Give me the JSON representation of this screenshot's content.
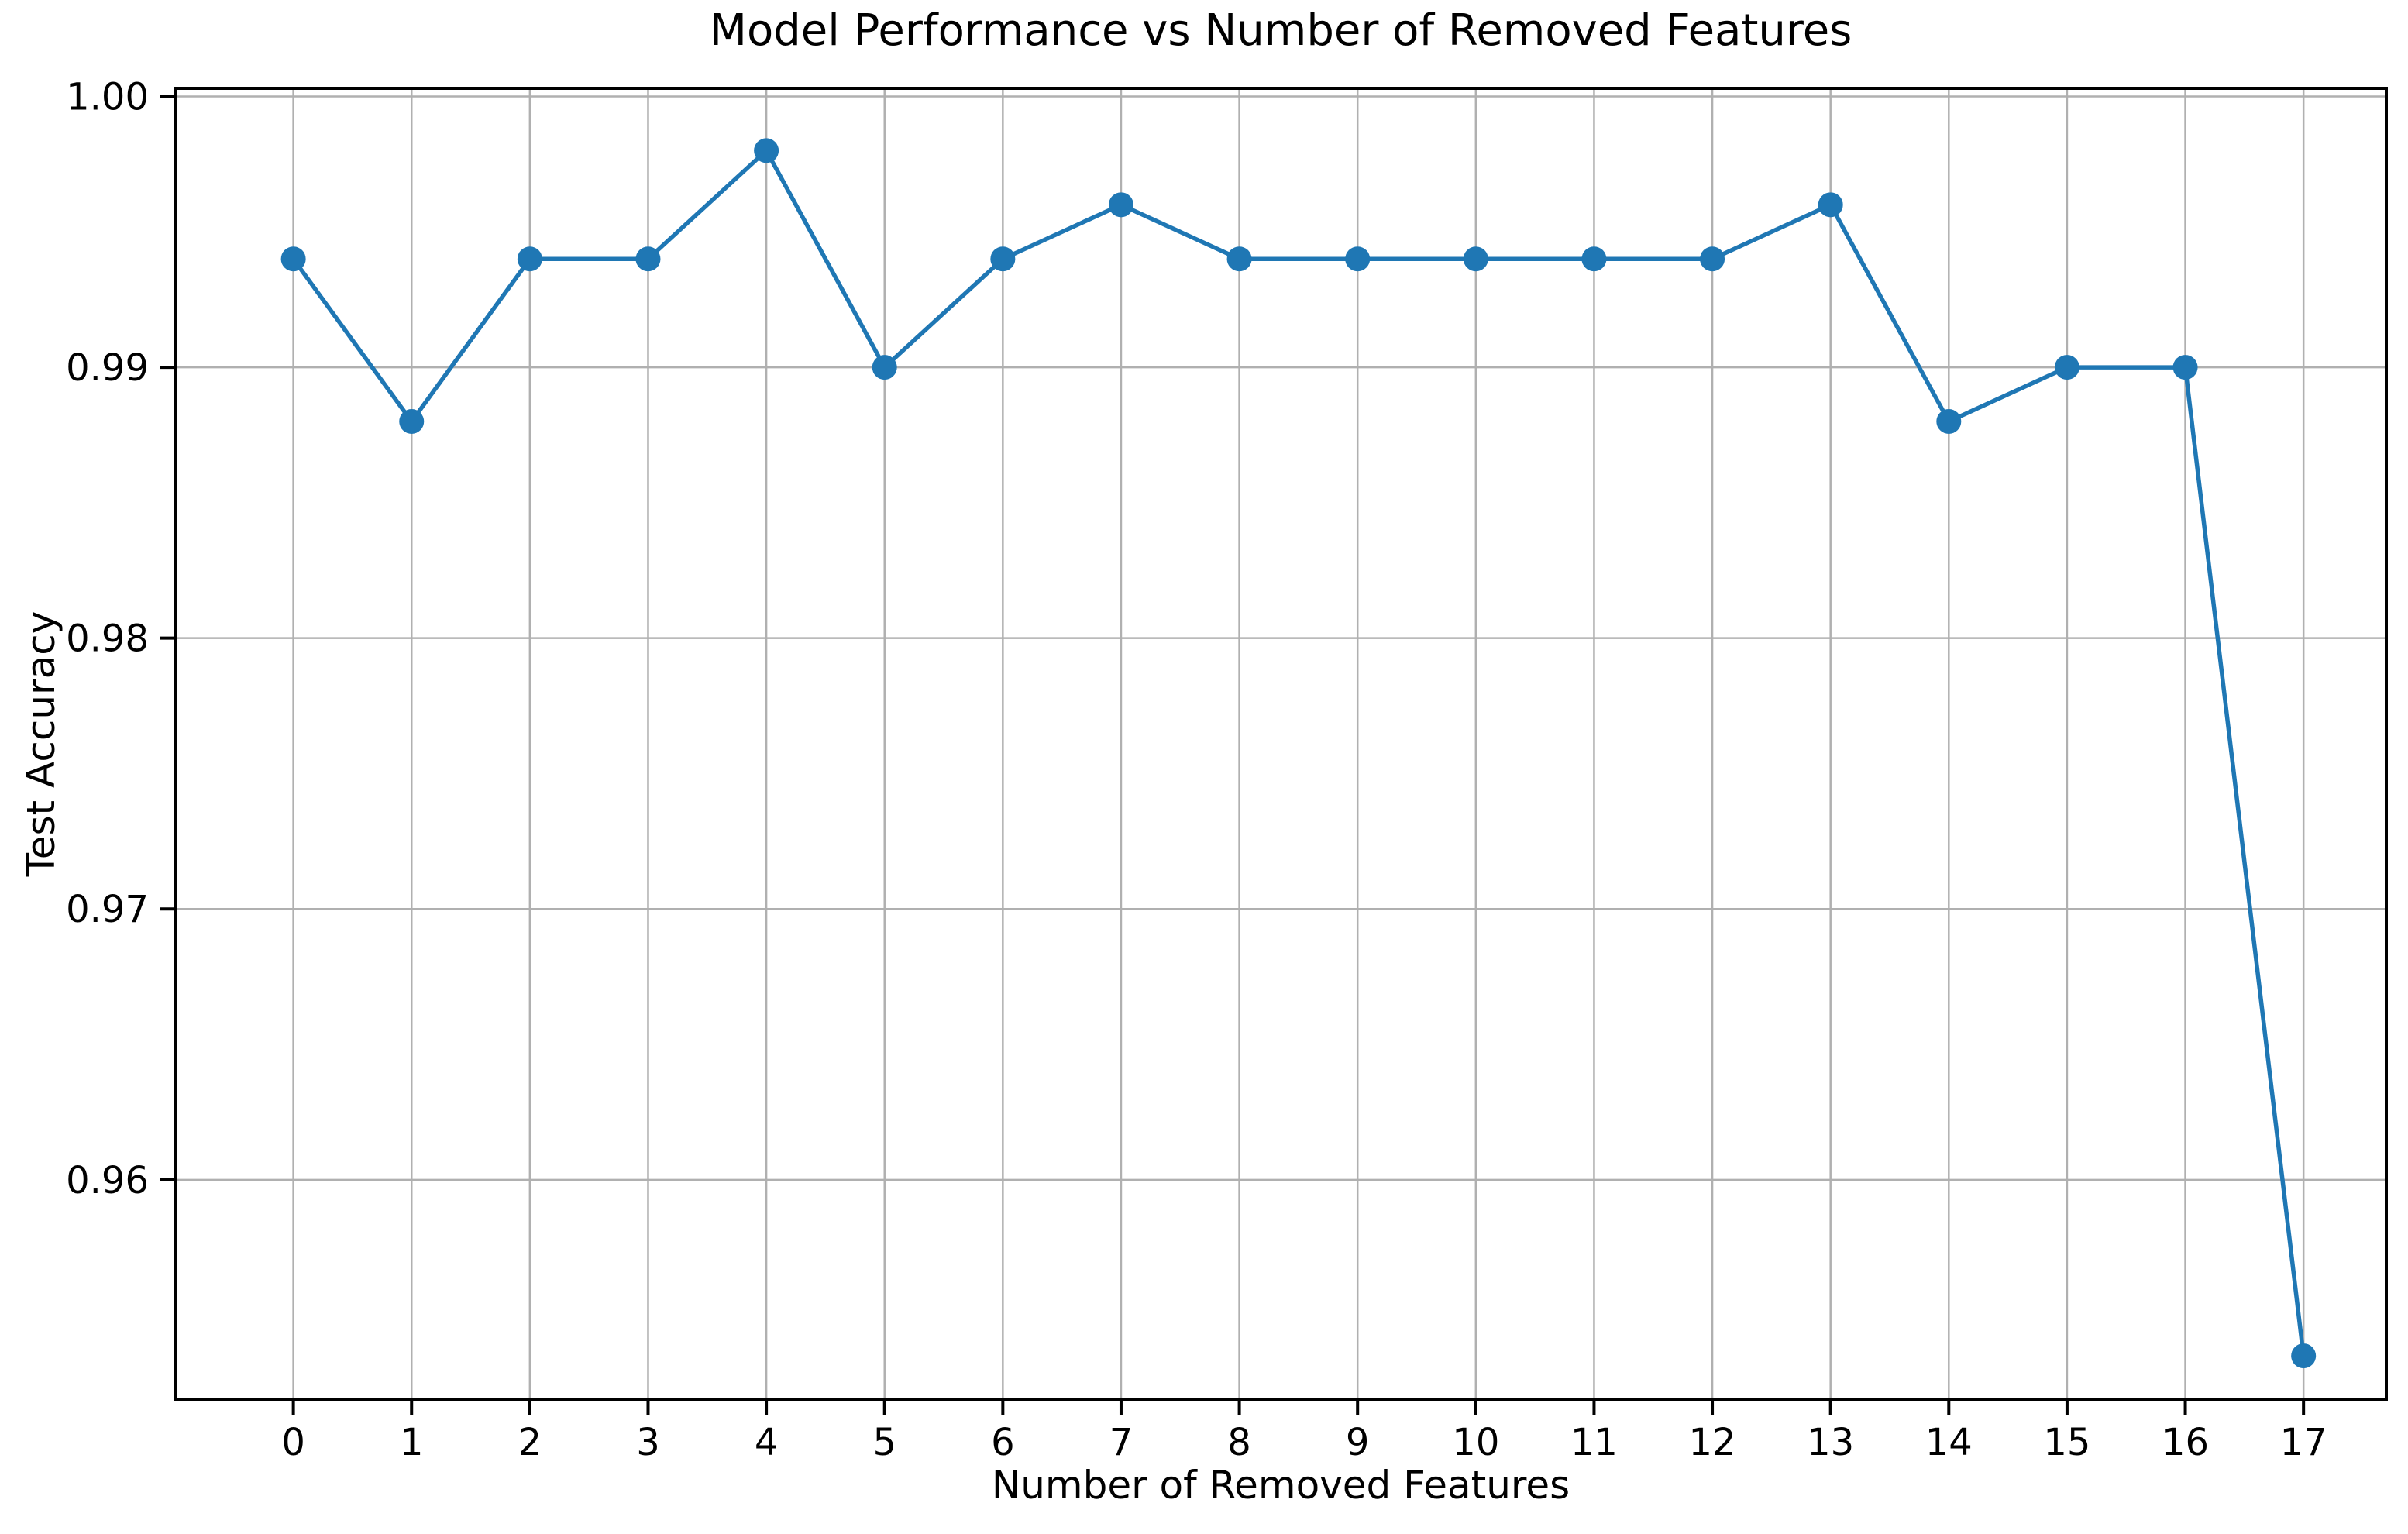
{
  "chart_data": {
    "type": "line",
    "title": "Model Performance vs Number of Removed Features",
    "xlabel": "Number of Removed Features",
    "ylabel": "Test Accuracy",
    "x": [
      0,
      1,
      2,
      3,
      4,
      5,
      6,
      7,
      8,
      9,
      10,
      11,
      12,
      13,
      14,
      15,
      16,
      17
    ],
    "y": [
      0.994,
      0.988,
      0.994,
      0.994,
      0.998,
      0.99,
      0.994,
      0.996,
      0.994,
      0.994,
      0.994,
      0.994,
      0.994,
      0.996,
      0.988,
      0.99,
      0.99,
      0.9535
    ],
    "x_tick_labels": [
      "0",
      "1",
      "2",
      "3",
      "4",
      "5",
      "6",
      "7",
      "8",
      "9",
      "10",
      "11",
      "12",
      "13",
      "14",
      "15",
      "16",
      "17"
    ],
    "x_ticks": [
      0,
      1,
      2,
      3,
      4,
      5,
      6,
      7,
      8,
      9,
      10,
      11,
      12,
      13,
      14,
      15,
      16,
      17
    ],
    "y_tick_labels": [
      "1.00",
      "0.99",
      "0.98",
      "0.97",
      "0.96"
    ],
    "y_ticks": [
      1.0,
      0.99,
      0.98,
      0.97,
      0.96
    ],
    "xlim": [
      -1.0,
      17.7
    ],
    "ylim": [
      0.9519,
      1.0003
    ],
    "grid": true,
    "legend": "none",
    "line_color": "#1f77b4",
    "marker": "circle",
    "grid_color": "#b0b0b0",
    "spine_color": "#000000",
    "background_color": "#ffffff"
  }
}
